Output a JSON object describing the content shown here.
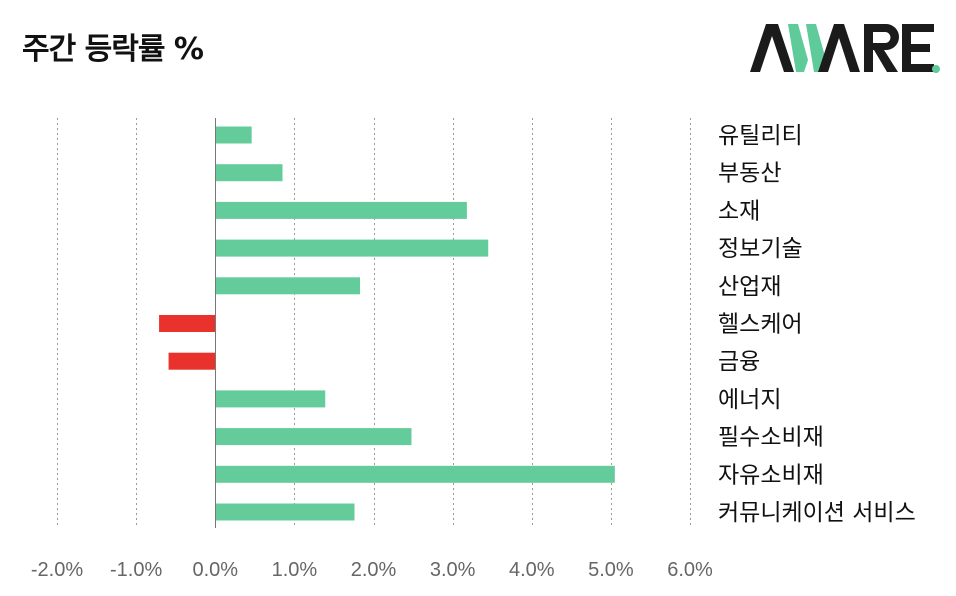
{
  "title": "주간 등락률 %",
  "logo": {
    "text": "AWARE",
    "accent_color": "#5fcb9a",
    "dark_color": "#1b1b1b"
  },
  "colors": {
    "positive": "#64cc9b",
    "negative": "#e8322b",
    "grid": "#9a9a9a",
    "axis": "#777777"
  },
  "chart_data": {
    "type": "bar",
    "orientation": "horizontal",
    "title": "주간 등락률 %",
    "categories": [
      "유틸리티",
      "부동산",
      "소재",
      "정보기술",
      "산업재",
      "헬스케어",
      "금융",
      "에너지",
      "필수소비재",
      "자유소비재",
      "커뮤니케이션 서비스"
    ],
    "values": [
      0.46,
      0.85,
      3.18,
      3.45,
      1.83,
      -0.71,
      -0.59,
      1.39,
      2.48,
      5.05,
      1.76
    ],
    "xlim": [
      -2.0,
      6.0
    ],
    "xticks": [
      "-2.0%",
      "-1.0%",
      "0.0%",
      "1.0%",
      "2.0%",
      "3.0%",
      "4.0%",
      "5.0%",
      "6.0%"
    ],
    "grid": true,
    "legend": "none"
  }
}
